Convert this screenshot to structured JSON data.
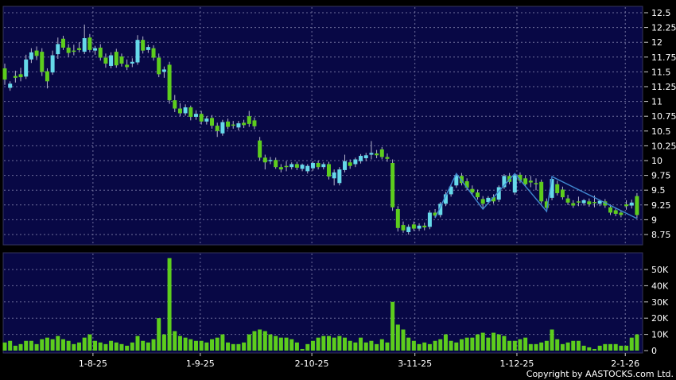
{
  "footer": {
    "copyright": "Copyright by AASTOCKS.com Ltd."
  },
  "colors": {
    "background": "#000000",
    "panel_background": "#080845",
    "panel_border": "#34345c",
    "gridline": "#9090b8",
    "candle_up": "#66d9ea",
    "candle_down": "#5dcd1d",
    "wick": "#b5b5cc",
    "zigzag_line": "#3f87cf",
    "axis_text": "#ffffff",
    "tick_mark": "#cccccc"
  },
  "chart_data": {
    "type": "candlestick",
    "title": "",
    "grid": true,
    "legend_position": "none",
    "price_axis": {
      "side": "right",
      "min": 8.75,
      "max": 12.5,
      "step": 0.25,
      "ticks": [
        "12.5",
        "12.25",
        "12",
        "11.75",
        "11.5",
        "11.25",
        "11",
        "10.75",
        "10.5",
        "10.25",
        "10",
        "9.75",
        "9.5",
        "9.25",
        "9",
        "8.75"
      ]
    },
    "volume_axis": {
      "side": "right",
      "min": 0,
      "max_k": 50,
      "ticks": [
        {
          "label": "50K",
          "value_k": 50
        },
        {
          "label": "40K",
          "value_k": 40
        },
        {
          "label": "30K",
          "value_k": 30
        },
        {
          "label": "20K",
          "value_k": 20
        },
        {
          "label": "10K",
          "value_k": 10
        },
        {
          "label": "0",
          "value_k": 0
        }
      ]
    },
    "x_axis": {
      "labels": [
        {
          "label": "1-8-25",
          "index": 16.6
        },
        {
          "label": "1-9-25",
          "index": 36.8
        },
        {
          "label": "2-10-25",
          "index": 57.8
        },
        {
          "label": "3-11-25",
          "index": 77.2
        },
        {
          "label": "1-12-25",
          "index": 96.4
        },
        {
          "label": "2-1-26",
          "index": 116.8
        }
      ]
    },
    "candle_format": [
      "open",
      "high",
      "low",
      "close",
      "volume_thousands"
    ],
    "candles": [
      [
        11.56,
        11.64,
        11.28,
        11.37,
        5
      ],
      [
        11.23,
        11.34,
        11.18,
        11.3,
        6
      ],
      [
        11.43,
        11.52,
        11.32,
        11.4,
        3
      ],
      [
        11.46,
        11.57,
        11.34,
        11.41,
        4
      ],
      [
        11.42,
        11.79,
        11.38,
        11.71,
        6
      ],
      [
        11.71,
        11.9,
        11.65,
        11.83,
        6
      ],
      [
        11.86,
        11.93,
        11.7,
        11.77,
        4
      ],
      [
        11.84,
        11.9,
        11.43,
        11.5,
        7
      ],
      [
        11.51,
        11.56,
        11.22,
        11.34,
        8
      ],
      [
        11.49,
        11.86,
        11.45,
        11.78,
        7
      ],
      [
        11.8,
        12.08,
        11.72,
        11.97,
        9
      ],
      [
        12.06,
        12.11,
        11.87,
        11.91,
        7
      ],
      [
        11.91,
        11.97,
        11.75,
        11.82,
        6
      ],
      [
        11.86,
        11.96,
        11.78,
        11.84,
        4
      ],
      [
        11.9,
        12.0,
        11.83,
        11.87,
        5
      ],
      [
        11.84,
        12.3,
        11.8,
        12.07,
        8
      ],
      [
        12.08,
        12.14,
        11.83,
        11.87,
        10
      ],
      [
        11.86,
        11.94,
        11.79,
        11.9,
        6
      ],
      [
        11.91,
        11.97,
        11.69,
        11.74,
        5
      ],
      [
        11.74,
        11.81,
        11.57,
        11.64,
        4
      ],
      [
        11.6,
        11.83,
        11.56,
        11.78,
        6
      ],
      [
        11.84,
        11.89,
        11.57,
        11.61,
        5
      ],
      [
        11.76,
        11.81,
        11.59,
        11.64,
        4
      ],
      [
        11.62,
        11.71,
        11.53,
        11.58,
        3
      ],
      [
        11.64,
        11.73,
        11.58,
        11.67,
        5
      ],
      [
        11.66,
        12.12,
        11.62,
        12.04,
        9
      ],
      [
        12.04,
        12.1,
        11.81,
        11.86,
        6
      ],
      [
        11.87,
        11.96,
        11.82,
        11.92,
        5
      ],
      [
        11.9,
        11.95,
        11.69,
        11.74,
        7
      ],
      [
        11.74,
        11.81,
        11.41,
        11.46,
        20
      ],
      [
        11.5,
        11.59,
        11.4,
        11.54,
        10
      ],
      [
        11.62,
        11.67,
        10.96,
        11.02,
        57
      ],
      [
        11.02,
        11.11,
        10.82,
        10.88,
        12
      ],
      [
        10.88,
        10.97,
        10.75,
        10.8,
        9
      ],
      [
        10.8,
        10.95,
        10.76,
        10.9,
        8
      ],
      [
        10.9,
        10.93,
        10.68,
        10.74,
        7
      ],
      [
        10.74,
        10.85,
        10.69,
        10.79,
        6
      ],
      [
        10.79,
        10.84,
        10.61,
        10.66,
        6
      ],
      [
        10.66,
        10.75,
        10.61,
        10.71,
        5
      ],
      [
        10.72,
        10.77,
        10.54,
        10.59,
        7
      ],
      [
        10.59,
        10.64,
        10.4,
        10.5,
        8
      ],
      [
        10.46,
        10.69,
        10.42,
        10.65,
        10
      ],
      [
        10.66,
        10.71,
        10.53,
        10.57,
        5
      ],
      [
        10.61,
        10.67,
        10.54,
        10.59,
        4
      ],
      [
        10.56,
        10.67,
        10.51,
        10.63,
        4
      ],
      [
        10.64,
        10.69,
        10.55,
        10.6,
        5
      ],
      [
        10.75,
        10.84,
        10.57,
        10.62,
        10
      ],
      [
        10.68,
        10.73,
        10.53,
        10.58,
        12
      ],
      [
        10.34,
        10.4,
        10.0,
        10.05,
        13
      ],
      [
        10.05,
        10.1,
        9.85,
        9.97,
        12
      ],
      [
        9.99,
        10.06,
        9.94,
        10.01,
        10
      ],
      [
        10.01,
        10.05,
        9.86,
        9.89,
        9
      ],
      [
        9.89,
        9.94,
        9.8,
        9.85,
        8
      ],
      [
        9.91,
        9.99,
        9.82,
        9.89,
        8
      ],
      [
        9.89,
        9.97,
        9.85,
        9.94,
        7
      ],
      [
        9.94,
        9.98,
        9.84,
        9.88,
        5
      ],
      [
        9.86,
        9.95,
        9.82,
        9.93,
        1
      ],
      [
        9.82,
        9.94,
        9.78,
        9.91,
        4
      ],
      [
        9.87,
        9.99,
        9.83,
        9.96,
        6
      ],
      [
        9.96,
        10.0,
        9.85,
        9.89,
        8
      ],
      [
        9.89,
        9.97,
        9.85,
        9.94,
        9
      ],
      [
        9.94,
        9.98,
        9.68,
        9.73,
        9
      ],
      [
        9.7,
        9.85,
        9.58,
        9.8,
        8
      ],
      [
        9.62,
        9.89,
        9.58,
        9.85,
        9
      ],
      [
        9.84,
        10.1,
        9.8,
        9.99,
        8
      ],
      [
        9.97,
        10.02,
        9.86,
        9.91,
        6
      ],
      [
        9.94,
        10.05,
        9.89,
        10.02,
        5
      ],
      [
        9.99,
        10.11,
        9.95,
        10.08,
        8
      ],
      [
        10.04,
        10.13,
        9.99,
        10.09,
        5
      ],
      [
        10.1,
        10.33,
        10.02,
        10.13,
        6
      ],
      [
        10.12,
        10.18,
        10.04,
        10.09,
        4
      ],
      [
        10.19,
        10.23,
        10.02,
        10.06,
        7
      ],
      [
        10.06,
        10.12,
        9.98,
        10.03,
        5
      ],
      [
        9.96,
        10.02,
        9.15,
        9.21,
        30
      ],
      [
        9.18,
        9.23,
        8.8,
        8.86,
        16
      ],
      [
        8.91,
        8.97,
        8.78,
        8.82,
        13
      ],
      [
        8.79,
        8.92,
        8.75,
        8.88,
        8
      ],
      [
        8.92,
        8.97,
        8.81,
        8.85,
        6
      ],
      [
        8.85,
        8.94,
        8.81,
        8.9,
        4
      ],
      [
        8.9,
        8.95,
        8.82,
        8.87,
        5
      ],
      [
        8.88,
        9.16,
        8.84,
        9.12,
        4
      ],
      [
        9.12,
        9.18,
        9.03,
        9.07,
        6
      ],
      [
        9.08,
        9.3,
        9.04,
        9.27,
        7
      ],
      [
        9.27,
        9.47,
        9.23,
        9.43,
        10
      ],
      [
        9.43,
        9.6,
        9.39,
        9.56,
        6
      ],
      [
        9.58,
        9.78,
        9.54,
        9.75,
        5
      ],
      [
        9.74,
        9.79,
        9.58,
        9.62,
        7
      ],
      [
        9.65,
        9.7,
        9.5,
        9.54,
        8
      ],
      [
        9.52,
        9.58,
        9.42,
        9.46,
        8
      ],
      [
        9.46,
        9.51,
        9.34,
        9.38,
        10
      ],
      [
        9.35,
        9.4,
        9.18,
        9.27,
        11
      ],
      [
        9.3,
        9.4,
        9.26,
        9.37,
        8
      ],
      [
        9.38,
        9.43,
        9.27,
        9.31,
        11
      ],
      [
        9.34,
        9.58,
        9.3,
        9.55,
        10
      ],
      [
        9.55,
        9.77,
        9.52,
        9.74,
        9
      ],
      [
        9.74,
        9.79,
        9.6,
        9.64,
        6
      ],
      [
        9.46,
        9.78,
        9.42,
        9.75,
        6
      ],
      [
        9.76,
        9.8,
        9.62,
        9.66,
        7
      ],
      [
        9.7,
        9.75,
        9.56,
        9.6,
        8
      ],
      [
        9.66,
        9.74,
        9.55,
        9.63,
        4
      ],
      [
        9.62,
        9.7,
        9.5,
        9.6,
        4
      ],
      [
        9.64,
        9.68,
        9.27,
        9.31,
        5
      ],
      [
        9.31,
        9.36,
        9.14,
        9.2,
        6
      ],
      [
        9.37,
        9.73,
        9.33,
        9.69,
        13
      ],
      [
        9.6,
        9.66,
        9.41,
        9.45,
        7
      ],
      [
        9.51,
        9.56,
        9.34,
        9.38,
        4
      ],
      [
        9.36,
        9.42,
        9.25,
        9.29,
        5
      ],
      [
        9.28,
        9.33,
        9.2,
        9.24,
        6
      ],
      [
        9.31,
        9.39,
        9.23,
        9.29,
        6
      ],
      [
        9.28,
        9.35,
        9.24,
        9.33,
        3
      ],
      [
        9.31,
        9.36,
        9.22,
        9.26,
        2
      ],
      [
        9.3,
        9.41,
        9.21,
        9.28,
        1
      ],
      [
        9.27,
        9.34,
        9.23,
        9.32,
        3
      ],
      [
        9.31,
        9.35,
        9.2,
        9.24,
        4
      ],
      [
        9.21,
        9.26,
        9.08,
        9.12,
        4
      ],
      [
        9.16,
        9.2,
        9.06,
        9.1,
        4
      ],
      [
        9.12,
        9.16,
        9.04,
        9.08,
        3
      ],
      [
        9.26,
        9.33,
        9.17,
        9.23,
        3
      ],
      [
        9.24,
        9.34,
        9.19,
        9.29,
        8
      ],
      [
        9.4,
        9.45,
        9.02,
        9.08,
        10
      ]
    ],
    "overlay": {
      "name": "zigzag",
      "points": [
        {
          "index": 81,
          "point": "low"
        },
        {
          "index": 85,
          "point": "high"
        },
        {
          "index": 90,
          "point": "low"
        },
        {
          "index": 96,
          "point": "high"
        },
        {
          "index": 102,
          "point": "low"
        },
        {
          "index": 103,
          "point": "high"
        },
        {
          "index": 119,
          "point": "low"
        }
      ]
    }
  }
}
